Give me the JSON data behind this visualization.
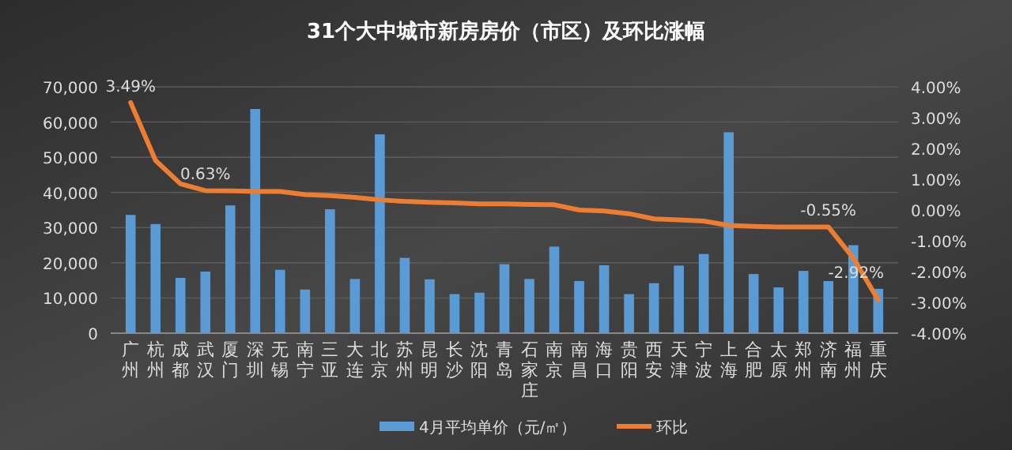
{
  "chart_data": {
    "type": "bar",
    "title": "31个大中城市新房房价（市区）及环比涨幅",
    "categories": [
      "广州",
      "杭州",
      "成都",
      "武汉",
      "厦门",
      "深圳",
      "无锡",
      "南宁",
      "三亚",
      "大连",
      "北京",
      "苏州",
      "昆明",
      "长沙",
      "沈阳",
      "青岛",
      "石家庄",
      "南京",
      "南昌",
      "海口",
      "贵阳",
      "西安",
      "天津",
      "宁波",
      "上海",
      "合肥",
      "太原",
      "郑州",
      "济南",
      "福州",
      "重庆"
    ],
    "series": [
      {
        "name": "4月平均单价（元/㎡）",
        "color": "#5b9bd5",
        "values": [
          33600,
          31000,
          15700,
          17500,
          36300,
          63700,
          18000,
          12400,
          35200,
          15400,
          56500,
          21400,
          15300,
          11100,
          11500,
          19600,
          15400,
          24600,
          14800,
          19300,
          11100,
          14200,
          19200,
          22500,
          57100,
          16800,
          13000,
          17700,
          14800,
          25000,
          12600
        ]
      },
      {
        "name": "环比",
        "type": "line",
        "axis": "y2",
        "color": "#ed7d31",
        "values": [
          3.49,
          1.61,
          0.85,
          0.63,
          0.62,
          0.6,
          0.6,
          0.5,
          0.47,
          0.41,
          0.33,
          0.28,
          0.25,
          0.23,
          0.2,
          0.2,
          0.18,
          0.17,
          0.0,
          -0.03,
          -0.12,
          -0.29,
          -0.32,
          -0.36,
          -0.5,
          -0.53,
          -0.55,
          -0.55,
          -0.55,
          -1.56,
          -2.92
        ],
        "value_labels": [
          "3.49%",
          null,
          null,
          "0.63%",
          null,
          null,
          null,
          null,
          null,
          null,
          null,
          null,
          null,
          null,
          null,
          null,
          null,
          null,
          null,
          null,
          null,
          null,
          null,
          null,
          null,
          null,
          null,
          null,
          "-0.55%",
          null,
          "-2.92%"
        ]
      }
    ],
    "ylim": [
      0,
      70000
    ],
    "yticks": [
      0,
      {
        "value": 10000,
        "label": "10,000"
      },
      {
        "value": 20000,
        "label": "20,000"
      },
      {
        "value": 30000,
        "label": "30,000"
      },
      {
        "value": 40000,
        "label": "40,000"
      },
      {
        "value": 50000,
        "label": "50,000"
      },
      {
        "value": 60000,
        "label": "60,000"
      },
      {
        "value": 70000,
        "label": "70,000"
      }
    ],
    "y2lim": [
      -4,
      4
    ],
    "y2ticks": [
      {
        "value": -4,
        "label": "-4.00%"
      },
      {
        "value": -3,
        "label": "-3.00%"
      },
      {
        "value": -2,
        "label": "-2.00%"
      },
      {
        "value": -1,
        "label": "-1.00%"
      },
      {
        "value": 0,
        "label": "0.00%"
      },
      {
        "value": 1,
        "label": "1.00%"
      },
      {
        "value": 2,
        "label": "2.00%"
      },
      {
        "value": 3,
        "label": "3.00%"
      },
      {
        "value": 4,
        "label": "4.00%"
      }
    ],
    "grid": "y",
    "legend": "bottom"
  }
}
